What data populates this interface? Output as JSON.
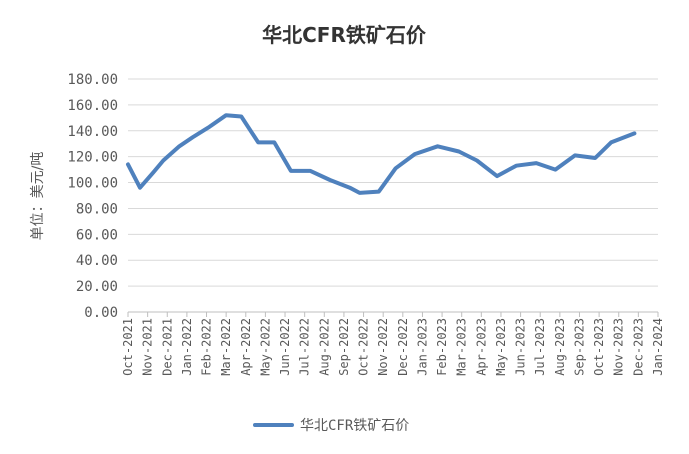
{
  "chart_data": {
    "type": "line",
    "title": "华北CFR铁矿石价",
    "ylabel": "单位：美元/吨",
    "xlabel": "",
    "ylim": [
      0,
      180
    ],
    "y_tick_step": 20,
    "y_tick_labels": [
      "0.00",
      "20.00",
      "40.00",
      "60.00",
      "80.00",
      "100.00",
      "120.00",
      "140.00",
      "160.00",
      "180.00"
    ],
    "grid": true,
    "legend_position": "bottom",
    "x_tick_labels": [
      "Oct-2021",
      "Nov-2021",
      "Dec-2021",
      "Jan-2022",
      "Feb-2022",
      "Mar-2022",
      "Apr-2022",
      "May-2022",
      "Jun-2022",
      "Jul-2022",
      "Aug-2022",
      "Sep-2022",
      "Oct-2022",
      "Nov-2022",
      "Dec-2022",
      "Jan-2023",
      "Feb-2023",
      "Mar-2023",
      "Apr-2023",
      "May-2023",
      "Jun-2023",
      "Jul-2023",
      "Aug-2023",
      "Sep-2023",
      "Oct-2023",
      "Nov-2023",
      "Dec-2023",
      "Jan-2024"
    ],
    "series": [
      {
        "name": "华北CFR铁矿石价",
        "color": "#4f81bd",
        "points": [
          {
            "x": "2021-10-01",
            "y": 114
          },
          {
            "x": "2021-10-20",
            "y": 96
          },
          {
            "x": "2021-11-10",
            "y": 108
          },
          {
            "x": "2021-11-25",
            "y": 117
          },
          {
            "x": "2021-12-20",
            "y": 128
          },
          {
            "x": "2022-01-10",
            "y": 135
          },
          {
            "x": "2022-02-05",
            "y": 143
          },
          {
            "x": "2022-03-01",
            "y": 152
          },
          {
            "x": "2022-03-25",
            "y": 151
          },
          {
            "x": "2022-04-20",
            "y": 131
          },
          {
            "x": "2022-05-15",
            "y": 131
          },
          {
            "x": "2022-06-10",
            "y": 109
          },
          {
            "x": "2022-07-10",
            "y": 109
          },
          {
            "x": "2022-08-10",
            "y": 102
          },
          {
            "x": "2022-09-10",
            "y": 96
          },
          {
            "x": "2022-09-25",
            "y": 92
          },
          {
            "x": "2022-10-25",
            "y": 93
          },
          {
            "x": "2022-11-20",
            "y": 111
          },
          {
            "x": "2022-12-20",
            "y": 122
          },
          {
            "x": "2023-01-25",
            "y": 128
          },
          {
            "x": "2023-02-25",
            "y": 124
          },
          {
            "x": "2023-03-25",
            "y": 117
          },
          {
            "x": "2023-04-25",
            "y": 105
          },
          {
            "x": "2023-05-25",
            "y": 113
          },
          {
            "x": "2023-06-25",
            "y": 115
          },
          {
            "x": "2023-07-25",
            "y": 110
          },
          {
            "x": "2023-08-25",
            "y": 121
          },
          {
            "x": "2023-09-25",
            "y": 119
          },
          {
            "x": "2023-10-20",
            "y": 131
          },
          {
            "x": "2023-11-25",
            "y": 138
          }
        ]
      }
    ]
  }
}
